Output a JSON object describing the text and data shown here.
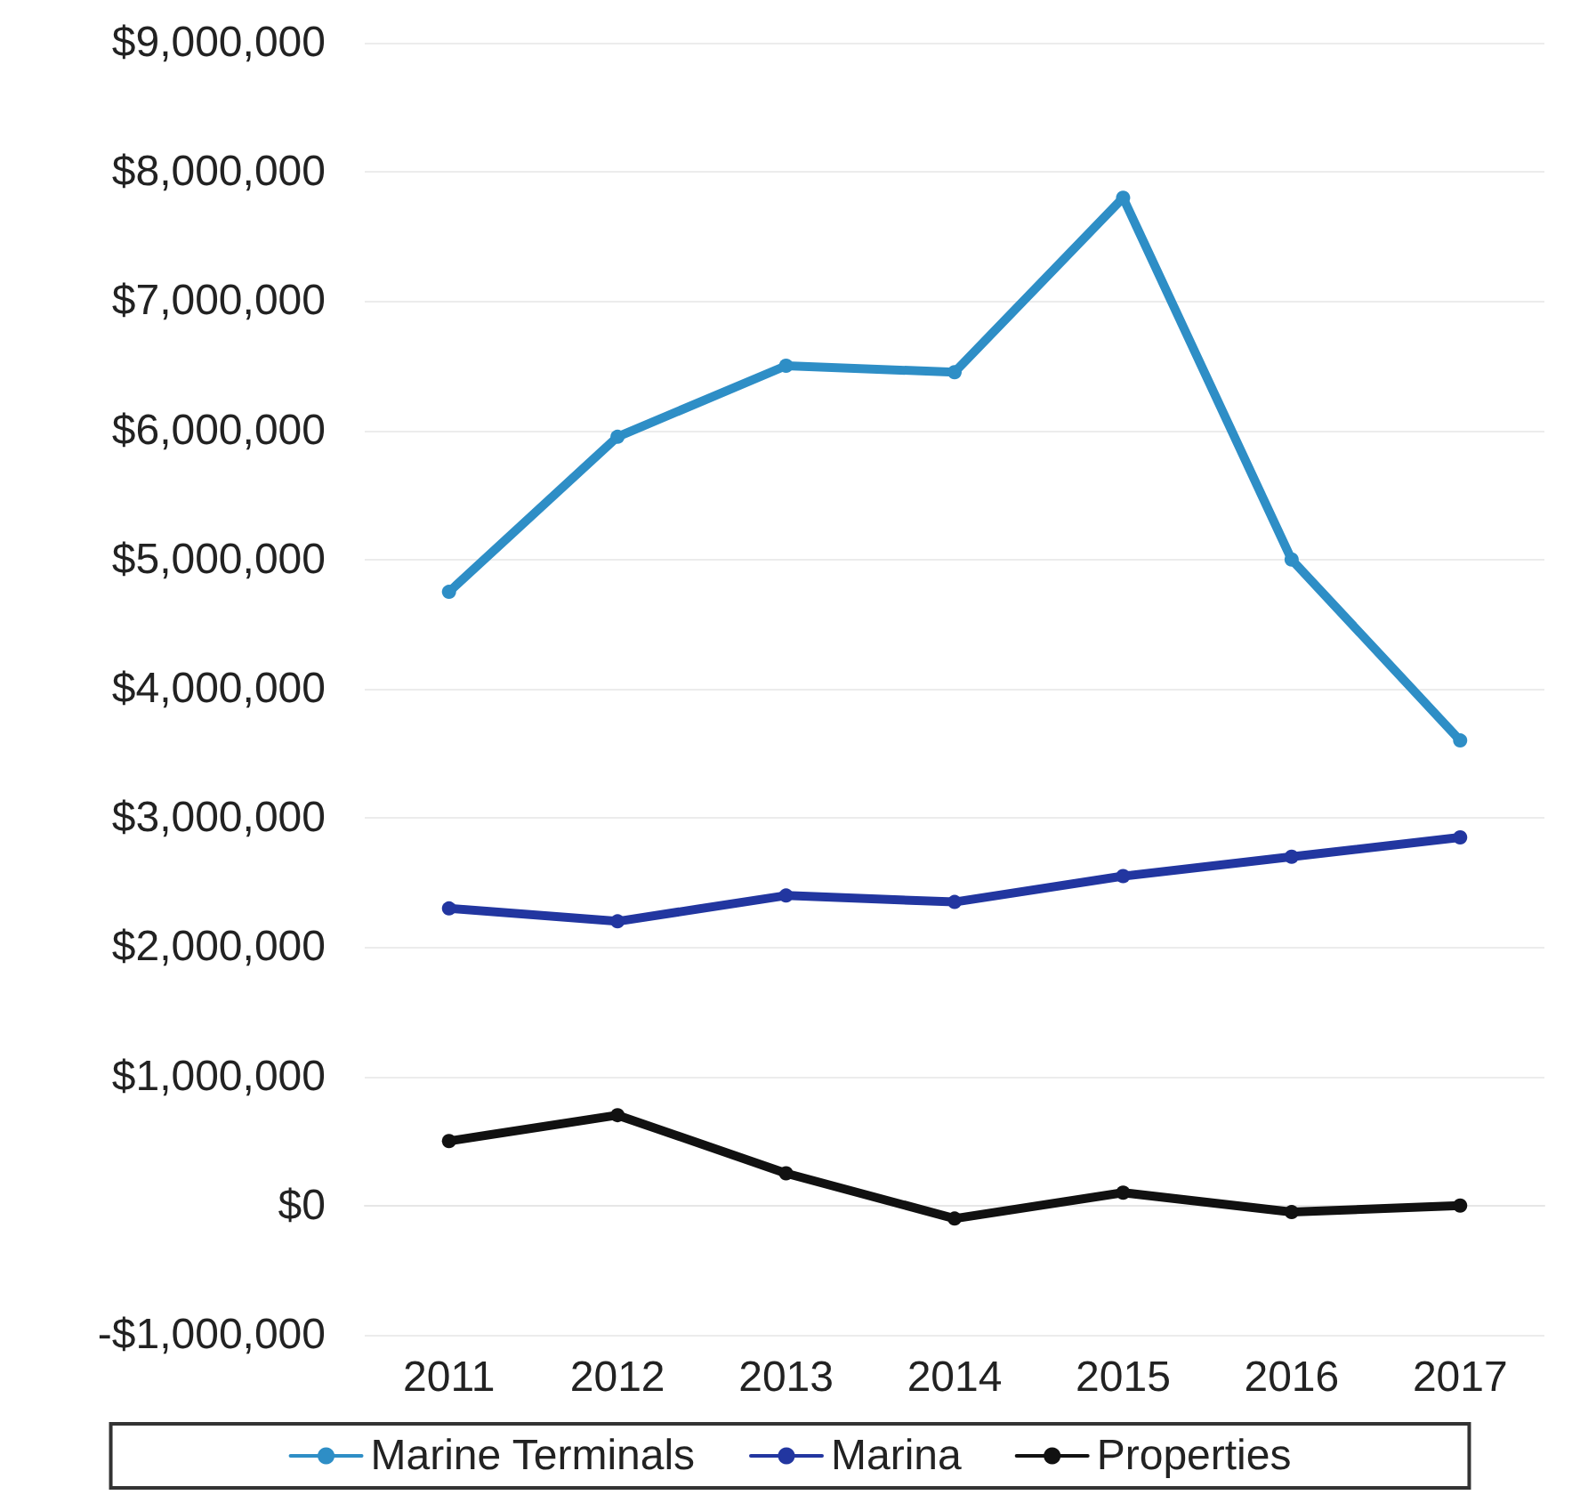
{
  "chart_data": {
    "type": "line",
    "categories": [
      "2011",
      "2012",
      "2013",
      "2014",
      "2015",
      "2016",
      "2017"
    ],
    "series": [
      {
        "name": "Marine Terminals",
        "color": "#2e8ec6",
        "values": [
          4750000,
          5950000,
          6500000,
          6450000,
          7800000,
          5000000,
          3600000
        ]
      },
      {
        "name": "Marina",
        "color": "#2236a0",
        "values": [
          2300000,
          2200000,
          2400000,
          2350000,
          2550000,
          2700000,
          2850000
        ]
      },
      {
        "name": "Properties",
        "color": "#111111",
        "values": [
          500000,
          700000,
          250000,
          -100000,
          100000,
          -50000,
          0
        ]
      }
    ],
    "ylim": [
      -1000000,
      9000000
    ],
    "yticks": [
      {
        "value": -1000000,
        "label": "-$1,000,000"
      },
      {
        "value": 0,
        "label": "$0"
      },
      {
        "value": 1000000,
        "label": "$1,000,000"
      },
      {
        "value": 2000000,
        "label": "$2,000,000"
      },
      {
        "value": 3000000,
        "label": "$3,000,000"
      },
      {
        "value": 4000000,
        "label": "$4,000,000"
      },
      {
        "value": 5000000,
        "label": "$5,000,000"
      },
      {
        "value": 6000000,
        "label": "$6,000,000"
      },
      {
        "value": 7000000,
        "label": "$7,000,000"
      },
      {
        "value": 8000000,
        "label": "$8,000,000"
      },
      {
        "value": 9000000,
        "label": "$9,000,000"
      }
    ],
    "grid": "y",
    "legend": "bottom",
    "marker": "circle",
    "line_style": "solid"
  }
}
